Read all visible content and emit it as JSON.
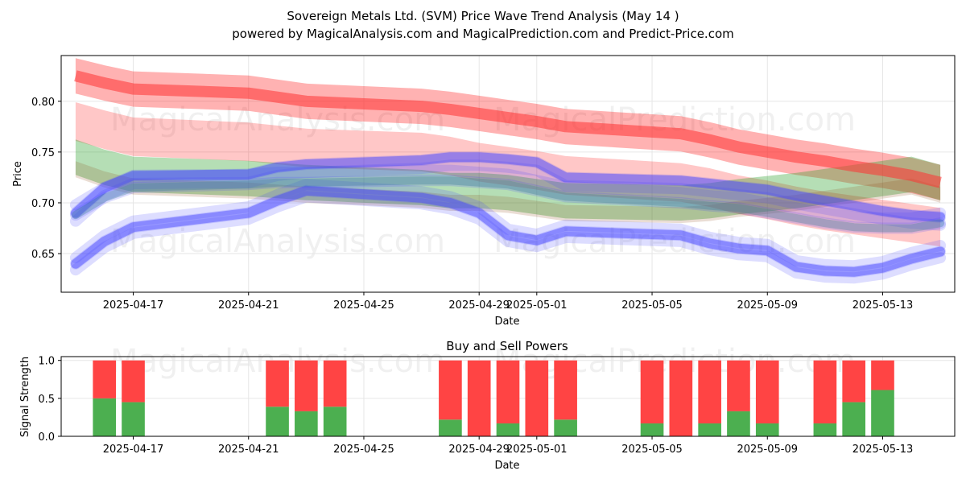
{
  "chart_data": [
    {
      "type": "line",
      "title": "Sovereign Metals Ltd. (SVM) Price Wave Trend Analysis (May 14 )",
      "subtitle": "powered by MagicalAnalysis.com and MagicalPrediction.com and Predict-Price.com",
      "xlabel": "Date",
      "ylabel": "Price",
      "ylim": [
        0.612,
        0.845
      ],
      "yticks": [
        0.65,
        0.7,
        0.75,
        0.8
      ],
      "ytick_labels": [
        "0.65",
        "0.70",
        "0.75",
        "0.80"
      ],
      "xticks": [
        "2025-04-17",
        "2025-04-21",
        "2025-04-25",
        "2025-04-29",
        "2025-05-01",
        "2025-05-05",
        "2025-05-09",
        "2025-05-13"
      ],
      "xlim_days": [
        -2.5,
        28.5
      ],
      "grid": true,
      "watermarks": [
        "MagicalAnalysis.com",
        "MagicalPrediction.com",
        "MagicalAnalysis.com",
        "MagicalPrediction.com"
      ],
      "x_days": [
        -2,
        -1,
        0,
        4,
        5,
        6,
        10,
        11,
        12,
        13,
        14,
        15,
        19,
        20,
        21,
        22,
        23,
        24,
        25,
        26,
        27,
        28
      ],
      "series": [
        {
          "name": "red upper band",
          "color": "#ff0000",
          "values": [
            0.825,
            0.818,
            0.812,
            0.808,
            0.804,
            0.8,
            0.795,
            0.792,
            0.788,
            0.784,
            0.78,
            0.775,
            0.768,
            0.762,
            0.755,
            0.75,
            0.745,
            0.741,
            0.736,
            0.732,
            0.727,
            0.72
          ]
        },
        {
          "name": "red lower band",
          "color": "#ff0000",
          "values": [
            0.78,
            0.772,
            0.765,
            0.76,
            0.757,
            0.754,
            0.75,
            0.746,
            0.74,
            0.736,
            0.732,
            0.727,
            0.72,
            0.715,
            0.708,
            0.703,
            0.697,
            0.692,
            0.688,
            0.684,
            0.68,
            0.676
          ]
        },
        {
          "name": "green band",
          "color": "#2ca02c",
          "values": [
            0.745,
            0.735,
            0.728,
            0.724,
            0.722,
            0.72,
            0.715,
            0.712,
            0.712,
            0.71,
            0.706,
            0.702,
            0.7,
            0.702,
            0.706,
            0.709,
            0.712,
            0.716,
            0.72,
            0.724,
            0.728,
            0.72
          ]
        },
        {
          "name": "blue upper wave",
          "color": "#4444ff",
          "values": [
            0.69,
            0.715,
            0.727,
            0.728,
            0.735,
            0.738,
            0.742,
            0.745,
            0.745,
            0.743,
            0.74,
            0.725,
            0.722,
            0.719,
            0.716,
            0.713,
            0.707,
            0.702,
            0.697,
            0.692,
            0.688,
            0.686
          ]
        },
        {
          "name": "blue mid wave",
          "color": "#4444ff",
          "values": [
            0.688,
            0.705,
            0.715,
            0.718,
            0.72,
            0.72,
            0.722,
            0.722,
            0.72,
            0.718,
            0.712,
            0.706,
            0.7,
            0.697,
            0.695,
            0.69,
            0.685,
            0.68,
            0.676,
            0.675,
            0.675,
            0.68
          ]
        },
        {
          "name": "blue lower wave",
          "color": "#4444ff",
          "values": [
            0.64,
            0.662,
            0.676,
            0.69,
            0.702,
            0.712,
            0.705,
            0.7,
            0.69,
            0.668,
            0.663,
            0.672,
            0.668,
            0.66,
            0.655,
            0.653,
            0.637,
            0.633,
            0.632,
            0.636,
            0.645,
            0.652
          ]
        }
      ]
    },
    {
      "type": "bar",
      "title": "Buy and Sell Powers",
      "xlabel": "Date",
      "ylabel": "Signal Strength",
      "ylim": [
        0,
        1.05
      ],
      "yticks": [
        0.0,
        0.5,
        1.0
      ],
      "ytick_labels": [
        "0.0",
        "0.5",
        "1.0"
      ],
      "xticks": [
        "2025-04-17",
        "2025-04-21",
        "2025-04-25",
        "2025-04-29",
        "2025-05-01",
        "2025-05-05",
        "2025-05-09",
        "2025-05-13"
      ],
      "xlim_days": [
        -2.5,
        28.5
      ],
      "x_days": [
        -1,
        0,
        5,
        6,
        7,
        11,
        12,
        13,
        14,
        15,
        18,
        19,
        20,
        21,
        22,
        24,
        25,
        26
      ],
      "series": [
        {
          "name": "Buy",
          "color": "#4caf50",
          "values": [
            0.5,
            0.45,
            0.39,
            0.33,
            0.39,
            0.22,
            0.0,
            0.17,
            0.0,
            0.22,
            0.17,
            0.0,
            0.17,
            0.33,
            0.17,
            0.17,
            0.45,
            0.61
          ]
        },
        {
          "name": "Sell",
          "color": "#ff4444",
          "values": [
            0.5,
            0.55,
            0.61,
            0.67,
            0.61,
            0.78,
            1.0,
            0.83,
            1.0,
            0.78,
            0.83,
            1.0,
            0.83,
            0.67,
            0.83,
            0.83,
            0.55,
            0.39
          ]
        }
      ]
    }
  ]
}
